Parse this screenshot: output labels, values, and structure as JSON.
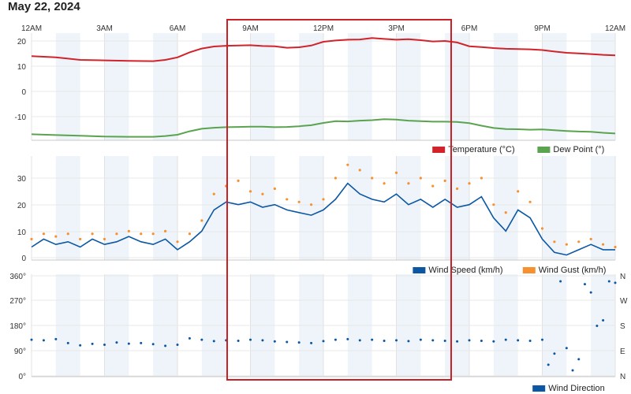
{
  "page": {
    "date_label": "May 22, 2024"
  },
  "colors": {
    "temperature": "#d2232a",
    "dew_point": "#5aa34f",
    "wind_speed": "#0b57a4",
    "wind_gust": "#f7902f",
    "wind_direction": "#0b57a4",
    "highlight": "#cc2026",
    "band": "#eef4fa"
  },
  "chart_data": [
    {
      "type": "line",
      "x_ticks": [
        "12AM",
        "3AM",
        "6AM",
        "9AM",
        "12PM",
        "3PM",
        "6PM",
        "9PM",
        "12AM"
      ],
      "y_ticks": [
        "20",
        "10",
        "0",
        "-10"
      ],
      "ylim": [
        -19,
        23
      ],
      "grid": true,
      "legend": "bottom-right",
      "x_start": 0,
      "x_end": 24,
      "series": [
        {
          "name": "Temperature (°C)",
          "color_key": "temperature",
          "x": [
            0,
            1,
            2,
            3,
            4,
            5,
            5.5,
            6,
            6.5,
            7,
            7.5,
            8,
            8.5,
            9,
            9.5,
            10,
            10.5,
            11,
            11.5,
            12,
            12.5,
            13,
            13.5,
            14,
            14.5,
            15,
            15.5,
            16,
            16.5,
            17,
            17.5,
            18,
            18.5,
            19,
            19.5,
            20,
            20.5,
            21,
            21.5,
            22,
            22.5,
            23,
            23.5,
            24
          ],
          "y": [
            14.0,
            13.5,
            12.5,
            12.3,
            12.1,
            12.0,
            12.5,
            13.5,
            15.5,
            17.0,
            17.8,
            18.1,
            18.2,
            18.3,
            18.0,
            17.9,
            17.3,
            17.5,
            18.2,
            19.7,
            20.2,
            20.5,
            20.6,
            21.2,
            20.8,
            20.5,
            20.7,
            20.3,
            19.8,
            20.0,
            19.4,
            17.9,
            17.6,
            17.2,
            16.9,
            16.8,
            16.7,
            16.4,
            15.8,
            15.3,
            15.1,
            14.8,
            14.5,
            14.3
          ]
        },
        {
          "name": "Dew Point (°)",
          "color_key": "dew_point",
          "x": [
            0,
            1,
            2,
            3,
            4,
            5,
            5.5,
            6,
            6.5,
            7,
            7.5,
            8,
            8.5,
            9,
            9.5,
            10,
            10.5,
            11,
            11.5,
            12,
            12.5,
            13,
            13.5,
            14,
            14.5,
            15,
            15.5,
            16,
            16.5,
            17,
            17.5,
            18,
            18.5,
            19,
            19.5,
            20,
            20.5,
            21,
            21.5,
            22,
            22.5,
            23,
            23.5,
            24
          ],
          "y": [
            -17.0,
            -17.3,
            -17.6,
            -17.9,
            -18.0,
            -18.0,
            -17.7,
            -17.2,
            -15.8,
            -14.8,
            -14.4,
            -14.2,
            -14.1,
            -14.0,
            -14.0,
            -14.2,
            -14.1,
            -13.8,
            -13.4,
            -12.5,
            -11.8,
            -11.9,
            -11.6,
            -11.4,
            -11.0,
            -11.2,
            -11.6,
            -11.8,
            -12.0,
            -12.0,
            -12.1,
            -12.6,
            -13.6,
            -14.5,
            -14.9,
            -15.0,
            -15.2,
            -15.1,
            -15.4,
            -15.7,
            -15.9,
            -16.0,
            -16.4,
            -16.7
          ]
        }
      ]
    },
    {
      "type": "line",
      "y_ticks": [
        "30",
        "20",
        "10",
        "0"
      ],
      "ylim": [
        -1,
        38
      ],
      "grid": true,
      "legend": "bottom-right",
      "series": [
        {
          "name": "Wind Speed (km/h)",
          "color_key": "wind_speed",
          "x": [
            0,
            0.5,
            1,
            1.5,
            2,
            2.5,
            3,
            3.5,
            4,
            4.5,
            5,
            5.5,
            6,
            6.5,
            7,
            7.5,
            8,
            8.5,
            9,
            9.5,
            10,
            10.5,
            11,
            11.5,
            12,
            12.5,
            13,
            13.5,
            14,
            14.5,
            15,
            15.5,
            16,
            16.5,
            17,
            17.5,
            18,
            18.5,
            19,
            19.5,
            20,
            20.5,
            21,
            21.5,
            22,
            22.5,
            23,
            23.5,
            24
          ],
          "y": [
            4,
            7,
            5,
            6,
            4,
            7,
            5,
            6,
            8,
            6,
            5,
            7,
            3,
            6,
            10,
            18,
            21,
            20,
            21,
            19,
            20,
            18,
            17,
            16,
            18,
            22,
            28,
            24,
            22,
            21,
            24,
            20,
            22,
            19,
            22,
            19,
            20,
            23,
            15,
            10,
            18,
            15,
            7,
            2,
            1,
            3,
            5,
            3,
            3
          ]
        },
        {
          "name": "Wind Gust (km/h)",
          "color_key": "wind_gust",
          "x": [
            0,
            0.5,
            1,
            1.5,
            2,
            2.5,
            3,
            3.5,
            4,
            4.5,
            5,
            5.5,
            6,
            6.5,
            7,
            7.5,
            8,
            8.5,
            9,
            9.5,
            10,
            10.5,
            11,
            11.5,
            12,
            12.5,
            13,
            13.5,
            14,
            14.5,
            15,
            15.5,
            16,
            16.5,
            17,
            17.5,
            18,
            18.5,
            19,
            19.5,
            20,
            20.5,
            21,
            21.5,
            22,
            22.5,
            23,
            23.5,
            24
          ],
          "y": [
            7,
            9,
            8,
            9,
            7,
            9,
            7,
            9,
            10,
            9,
            9,
            10,
            6,
            9,
            14,
            24,
            27,
            29,
            25,
            24,
            26,
            22,
            21,
            20,
            22,
            30,
            35,
            33,
            30,
            28,
            32,
            28,
            30,
            27,
            29,
            26,
            28,
            30,
            20,
            17,
            25,
            21,
            11,
            6,
            5,
            6,
            7,
            5,
            4
          ]
        }
      ]
    },
    {
      "type": "scatter",
      "y_ticks": [
        "360°",
        "270°",
        "180°",
        "90°",
        "0°"
      ],
      "y_right_ticks": [
        "N",
        "W",
        "S",
        "E",
        "N"
      ],
      "ylim": [
        0,
        360
      ],
      "grid": true,
      "legend": "bottom-right",
      "series": [
        {
          "name": "Wind Direction",
          "color_key": "wind_direction",
          "x": [
            0,
            0.5,
            1,
            1.5,
            2,
            2.5,
            3,
            3.5,
            4,
            4.5,
            5,
            5.5,
            6,
            6.5,
            7,
            7.5,
            8,
            8.5,
            9,
            9.5,
            10,
            10.5,
            11,
            11.5,
            12,
            12.5,
            13,
            13.5,
            14,
            14.5,
            15,
            15.5,
            16,
            16.5,
            17,
            17.5,
            18,
            18.5,
            19,
            19.5,
            20,
            20.5,
            21,
            21.25,
            21.5,
            21.75,
            22,
            22.25,
            22.5,
            22.75,
            23,
            23.25,
            23.5,
            23.75,
            24
          ],
          "y": [
            130,
            128,
            132,
            118,
            110,
            115,
            112,
            120,
            116,
            118,
            114,
            108,
            112,
            135,
            130,
            125,
            128,
            126,
            130,
            128,
            124,
            122,
            120,
            118,
            125,
            130,
            132,
            128,
            130,
            126,
            128,
            125,
            130,
            128,
            126,
            124,
            128,
            126,
            124,
            130,
            128,
            126,
            130,
            40,
            80,
            340,
            100,
            20,
            60,
            330,
            300,
            180,
            200,
            340,
            335
          ]
        }
      ]
    }
  ]
}
